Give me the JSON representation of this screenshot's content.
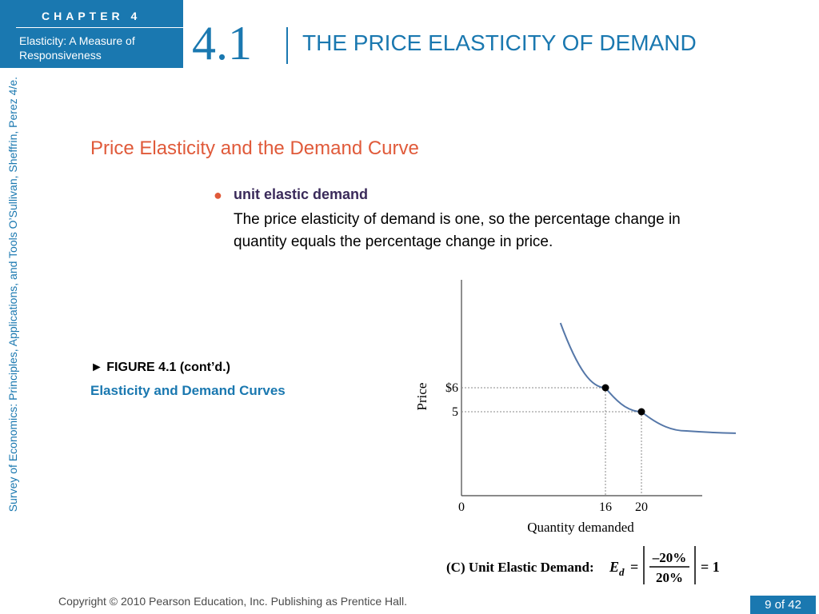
{
  "header": {
    "chapter_label": "CHAPTER 4",
    "chapter_subtitle": "Elasticity: A Measure of Responsiveness",
    "section_number": "4.1",
    "page_title": "THE PRICE ELASTICITY OF DEMAND"
  },
  "side_text": "Survey of Economics: Principles, Applications, and Tools   O’Sullivan, Sheffrin, Perez   4/e.",
  "content": {
    "subheading": "Price Elasticity and the Demand Curve",
    "bullet_term": "unit elastic demand",
    "bullet_definition": "The price elasticity of demand is one, so the percentage change in quantity equals the percentage change in price."
  },
  "figure": {
    "label": "► FIGURE 4.1 (cont’d.)",
    "caption": "Elasticity and Demand Curves"
  },
  "footer": {
    "copyright": "Copyright © 2010  Pearson Education, Inc. Publishing as Prentice Hall.",
    "page_indicator": "9 of 42"
  },
  "colors": {
    "brand_blue": "#1a78b0",
    "accent_orange": "#e05a3a",
    "curve_blue": "#5577a8"
  },
  "chart_data": {
    "type": "line",
    "title": "",
    "xlabel": "Quantity demanded",
    "ylabel": "Price",
    "x_tick_labels": [
      "0",
      "16",
      "20"
    ],
    "y_tick_labels": [
      "$6",
      "5"
    ],
    "points": [
      {
        "x": 16,
        "y": 6
      },
      {
        "x": 20,
        "y": 5
      }
    ],
    "series": [
      {
        "values": [
          {
            "x": 11,
            "y": 8.7
          },
          {
            "x": 16,
            "y": 6
          },
          {
            "x": 20,
            "y": 5
          },
          {
            "x": 25,
            "y": 4.2
          },
          {
            "x": 32,
            "y": 4.1
          }
        ]
      }
    ],
    "caption": {
      "text": "(C) Unit Elastic Demand:",
      "symbol": "E",
      "subscript": "d",
      "equals": "=",
      "numerator": "–20%",
      "denominator": "20%",
      "result": "= 1"
    }
  }
}
